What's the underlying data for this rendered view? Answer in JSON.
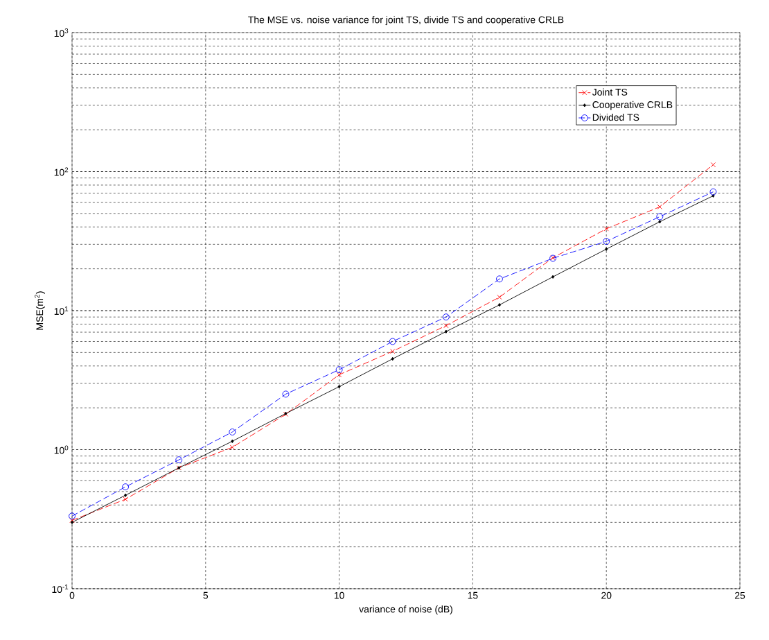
{
  "chart_data": {
    "type": "line",
    "title": "The MSE vs. noise variance for joint TS, divide TS and cooperative CRLB",
    "xlabel": "variance of noise (dB)",
    "ylabel": "MSE(m$^{2}$)",
    "x": [
      0,
      2,
      4,
      6,
      8,
      10,
      12,
      14,
      16,
      18,
      20,
      22,
      24
    ],
    "series": [
      {
        "name": "Joint TS",
        "color": "#ff0000",
        "marker": "cross",
        "line_style": "dashed",
        "values": [
          0.31,
          0.44,
          0.74,
          1.04,
          1.8,
          3.46,
          5.1,
          7.8,
          12.5,
          24,
          38.8,
          55.8,
          112
        ]
      },
      {
        "name": "Cooperative CRLB",
        "color": "#000000",
        "marker": "diamond",
        "line_style": "solid",
        "values": [
          0.3,
          0.47,
          0.74,
          1.15,
          1.82,
          2.84,
          4.5,
          7.07,
          11,
          17.5,
          27.7,
          43.6,
          67
        ]
      },
      {
        "name": "Divided TS",
        "color": "#0000ff",
        "marker": "circle",
        "line_style": "dashed",
        "values": [
          0.333,
          0.54,
          0.845,
          1.34,
          2.51,
          3.76,
          6,
          9,
          16.9,
          23.8,
          31.5,
          47.4,
          71.5
        ]
      }
    ],
    "xlim": [
      0,
      25
    ],
    "xticks": [
      0,
      5,
      10,
      15,
      20,
      25
    ],
    "ylim": [
      0.1,
      1000
    ],
    "yticks": [
      {
        "value": 0.1,
        "label": "10$^{-1}$"
      },
      {
        "value": 1,
        "label": "10$^{0}$"
      },
      {
        "value": 10,
        "label": "10$^{1}$"
      },
      {
        "value": 100,
        "label": "10$^{2}$"
      },
      {
        "value": 1000,
        "label": "10$^{3}$"
      }
    ],
    "log": "y",
    "grid": true,
    "legend": "top right"
  }
}
